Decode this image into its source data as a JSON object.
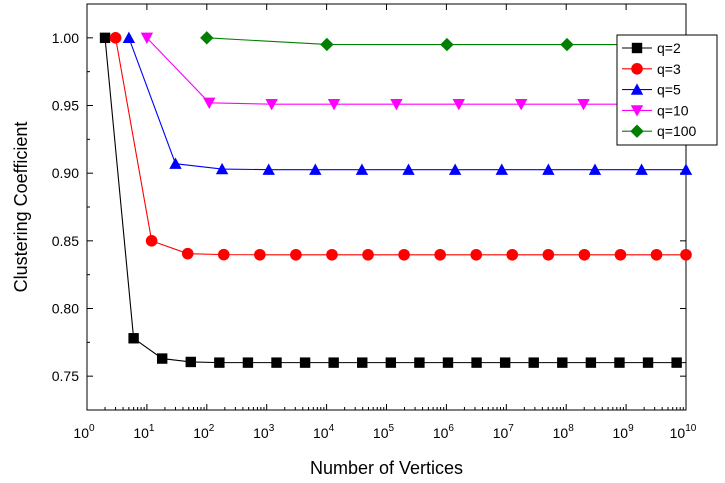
{
  "chart_data": {
    "type": "line",
    "xlabel": "Number of Vertices",
    "ylabel": "Clustering Coefficient",
    "xscale": "log",
    "xlim": [
      1,
      10000000000
    ],
    "ylim": [
      0.725,
      1.025
    ],
    "x_ticks": [
      {
        "value": 1,
        "base": "10",
        "exp": "0"
      },
      {
        "value": 10,
        "base": "10",
        "exp": "1"
      },
      {
        "value": 100,
        "base": "10",
        "exp": "2"
      },
      {
        "value": 1000,
        "base": "10",
        "exp": "3"
      },
      {
        "value": 10000,
        "base": "10",
        "exp": "4"
      },
      {
        "value": 100000,
        "base": "10",
        "exp": "5"
      },
      {
        "value": 1000000,
        "base": "10",
        "exp": "6"
      },
      {
        "value": 10000000,
        "base": "10",
        "exp": "7"
      },
      {
        "value": 100000000,
        "base": "10",
        "exp": "8"
      },
      {
        "value": 1000000000,
        "base": "10",
        "exp": "9"
      },
      {
        "value": 10000000000,
        "base": "10",
        "exp": "10"
      }
    ],
    "y_ticks": [
      {
        "value": 0.75,
        "label": "0.75"
      },
      {
        "value": 0.8,
        "label": "0.80"
      },
      {
        "value": 0.85,
        "label": "0.85"
      },
      {
        "value": 0.9,
        "label": "0.90"
      },
      {
        "value": 0.95,
        "label": "0.95"
      },
      {
        "value": 1.0,
        "label": "1.00"
      }
    ],
    "grid": false,
    "legend_position": "top-right",
    "series": [
      {
        "name": "q=2",
        "color": "#000000",
        "marker": "square",
        "points": [
          [
            2,
            1.0
          ],
          [
            6,
            0.778
          ],
          [
            18,
            0.763
          ],
          [
            54,
            0.7605
          ],
          [
            162,
            0.76
          ],
          [
            486,
            0.76
          ],
          [
            1458,
            0.76
          ],
          [
            4374,
            0.76
          ],
          [
            13122,
            0.76
          ],
          [
            39366,
            0.76
          ],
          [
            118098,
            0.76
          ],
          [
            354294,
            0.76
          ],
          [
            1062882,
            0.76
          ],
          [
            3188646,
            0.76
          ],
          [
            9565938,
            0.76
          ],
          [
            28697814,
            0.76
          ],
          [
            86093442,
            0.76
          ],
          [
            258280326,
            0.76
          ],
          [
            774840978,
            0.76
          ],
          [
            2324522934,
            0.76
          ],
          [
            6973568802,
            0.76
          ]
        ],
        "line_end_x": 10000000000
      },
      {
        "name": "q=3",
        "color": "#ff0000",
        "marker": "circle",
        "points": [
          [
            3,
            1.0
          ],
          [
            12,
            0.85
          ],
          [
            48,
            0.8405
          ],
          [
            192,
            0.8398
          ],
          [
            768,
            0.8397
          ],
          [
            3072,
            0.8397
          ],
          [
            12288,
            0.8397
          ],
          [
            49152,
            0.8397
          ],
          [
            196608,
            0.8397
          ],
          [
            786432,
            0.8397
          ],
          [
            3145728,
            0.8397
          ],
          [
            12582912,
            0.8397
          ],
          [
            50331648,
            0.8397
          ],
          [
            201326592,
            0.8397
          ],
          [
            805306368,
            0.8397
          ],
          [
            3221225472,
            0.8397
          ],
          [
            10000000000,
            0.8397
          ]
        ],
        "line_end_x": 10000000000
      },
      {
        "name": "q=5",
        "color": "#0000ff",
        "marker": "triangle-up",
        "points": [
          [
            5,
            1.0
          ],
          [
            30,
            0.907
          ],
          [
            180,
            0.903
          ],
          [
            1080,
            0.9026
          ],
          [
            6480,
            0.9026
          ],
          [
            38880,
            0.9026
          ],
          [
            233280,
            0.9026
          ],
          [
            1399680,
            0.9026
          ],
          [
            8398080,
            0.9026
          ],
          [
            50388480,
            0.9026
          ],
          [
            302330880,
            0.9026
          ],
          [
            1813985280,
            0.9026
          ],
          [
            10000000000,
            0.9026
          ]
        ],
        "line_end_x": 10000000000
      },
      {
        "name": "q=10",
        "color": "#ff00ff",
        "marker": "triangle-down",
        "points": [
          [
            10,
            1.0
          ],
          [
            110,
            0.952
          ],
          [
            1210,
            0.951
          ],
          [
            13310,
            0.951
          ],
          [
            146410,
            0.951
          ],
          [
            1610510,
            0.951
          ],
          [
            17715610,
            0.951
          ],
          [
            194871710,
            0.951
          ],
          [
            2143588810,
            0.951
          ]
        ],
        "line_end_x": 10000000000
      },
      {
        "name": "q=100",
        "color": "#008000",
        "marker": "diamond",
        "points": [
          [
            100,
            1.0
          ],
          [
            10100,
            0.9951
          ],
          [
            1020100,
            0.995
          ],
          [
            103030100,
            0.995
          ]
        ],
        "line_end_x": 10000000000
      }
    ]
  }
}
